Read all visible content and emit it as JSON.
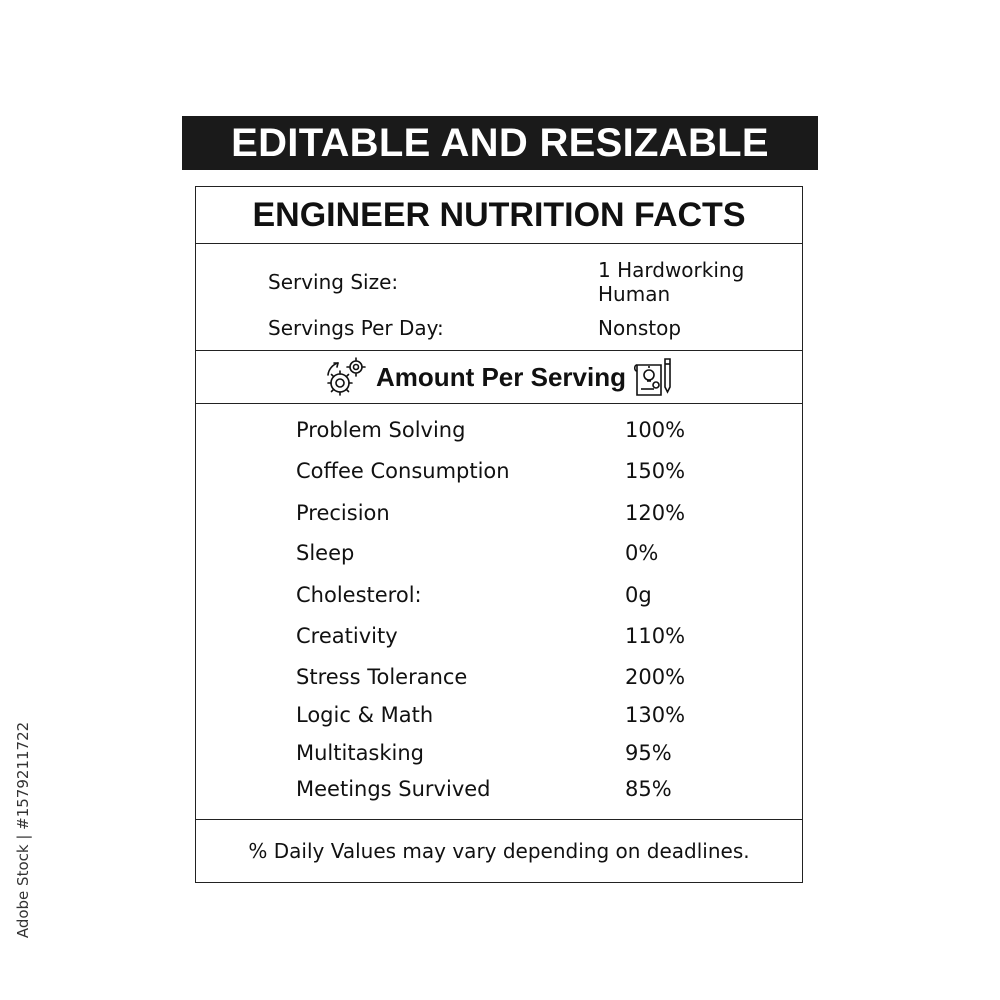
{
  "banner": {
    "text": "EDITABLE AND RESIZABLE"
  },
  "label": {
    "title": "ENGINEER NUTRITION FACTS",
    "serving": {
      "size_label": "Serving Size:",
      "size_value_line1": "1 Hardworking",
      "size_value_line2": "Human",
      "per_day_label": "Servings Per Day:",
      "per_day_value": "Nonstop"
    },
    "amount_header": "Amount Per Serving",
    "left_icon": "gears-icon",
    "right_icon": "blueprint-icon",
    "nutrients": [
      {
        "name": "Problem Solving",
        "value": "100%"
      },
      {
        "name": "Coffee Consumption",
        "value": "150%"
      },
      {
        "name": "Precision",
        "value": "120%"
      },
      {
        "name": "Sleep",
        "value": "0%"
      },
      {
        "name": "Cholesterol:",
        "value": "0g"
      },
      {
        "name": "Creativity",
        "value": "110%"
      },
      {
        "name": "Stress Tolerance",
        "value": "200%"
      },
      {
        "name": "Logic & Math",
        "value": "130%"
      },
      {
        "name": "Multitasking",
        "value": "95%"
      },
      {
        "name": "Meetings Survived",
        "value": "85%"
      }
    ],
    "footnote": "% Daily Values may vary depending on deadlines."
  },
  "stock_id": "Adobe Stock | #1579211722"
}
